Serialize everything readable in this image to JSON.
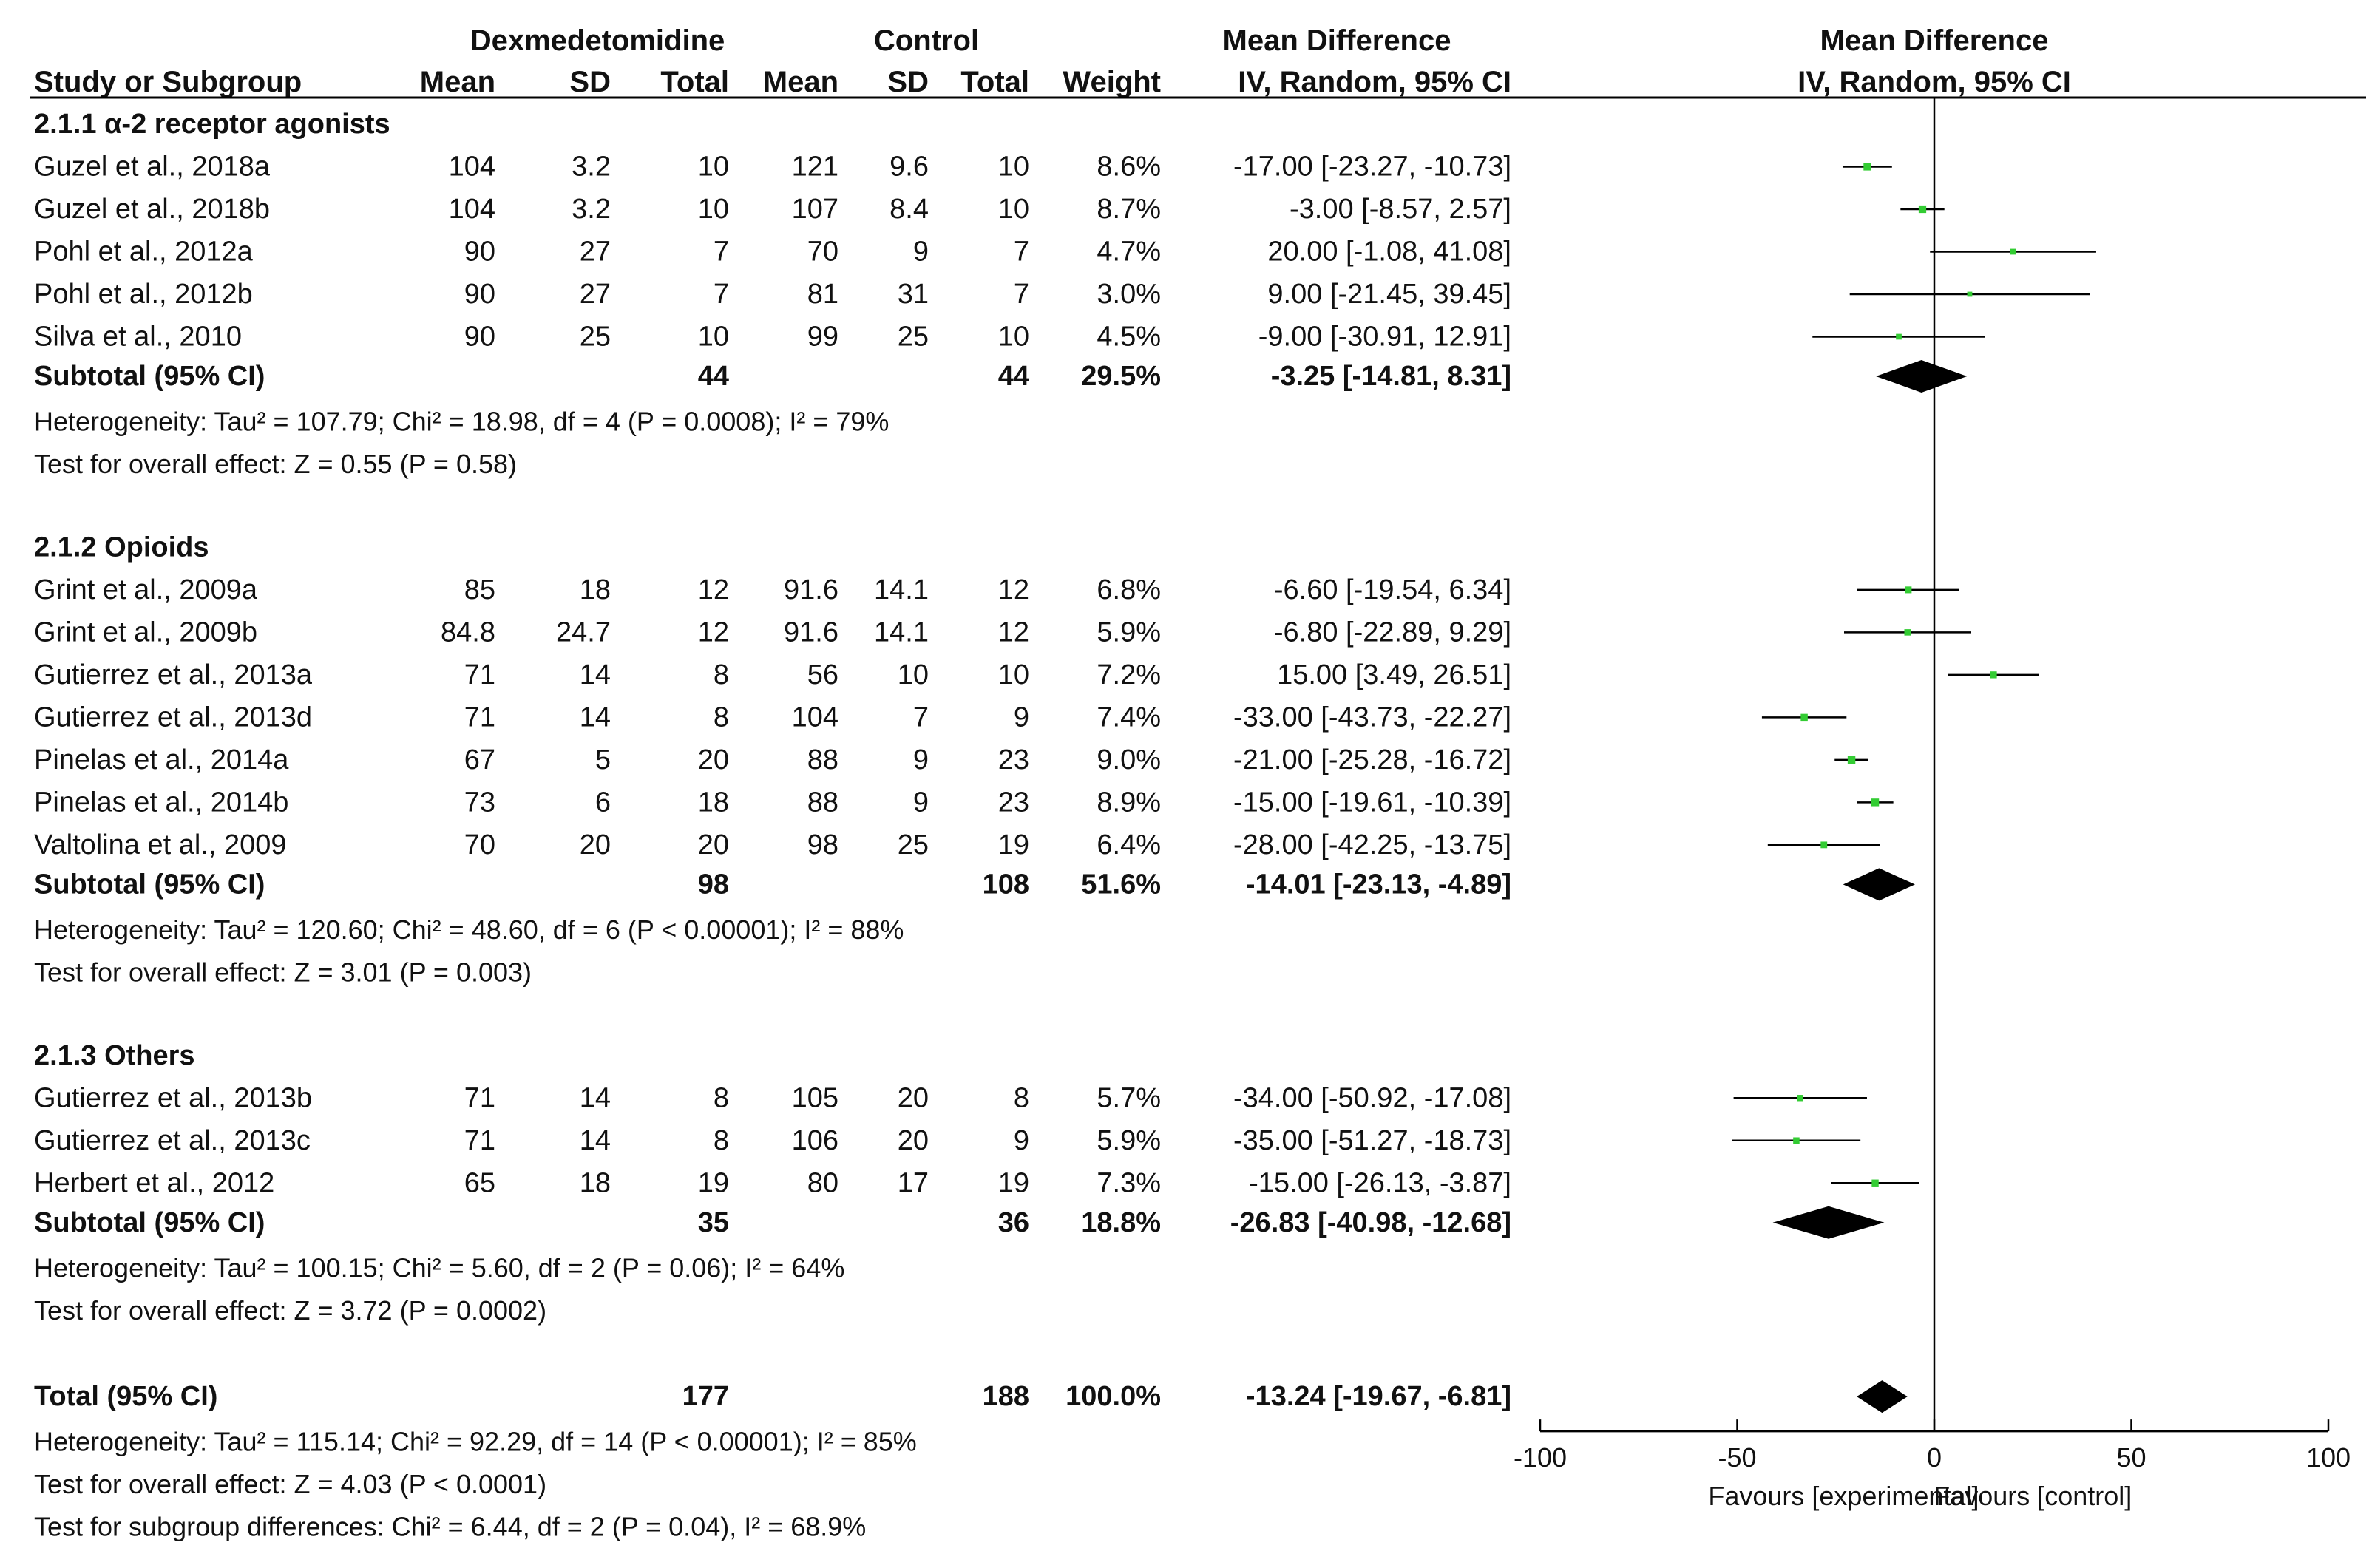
{
  "chart_data": {
    "type": "forest",
    "headers": {
      "study": "Study or Subgroup",
      "group1": "Dexmedetomidine",
      "group2": "Control",
      "mean": "Mean",
      "sd": "SD",
      "total": "Total",
      "weight": "Weight",
      "md": "Mean Difference",
      "method": "IV, Random, 95% CI",
      "plot_title": "Mean Difference",
      "plot_method": "IV, Random, 95% CI"
    },
    "subgroups": [
      {
        "title": "2.1.1 α-2 receptor agonists",
        "studies": [
          {
            "name": "Guzel et al., 2018a",
            "m1": "104",
            "sd1": "3.2",
            "n1": "10",
            "m2": "121",
            "sd2": "9.6",
            "n2": "10",
            "weight": "8.6%",
            "ci_text": "-17.00 [-23.27, -10.73]",
            "md": -17.0,
            "lo": -23.27,
            "hi": -10.73
          },
          {
            "name": "Guzel et al., 2018b",
            "m1": "104",
            "sd1": "3.2",
            "n1": "10",
            "m2": "107",
            "sd2": "8.4",
            "n2": "10",
            "weight": "8.7%",
            "ci_text": "-3.00 [-8.57, 2.57]",
            "md": -3.0,
            "lo": -8.57,
            "hi": 2.57
          },
          {
            "name": "Pohl et al., 2012a",
            "m1": "90",
            "sd1": "27",
            "n1": "7",
            "m2": "70",
            "sd2": "9",
            "n2": "7",
            "weight": "4.7%",
            "ci_text": "20.00 [-1.08, 41.08]",
            "md": 20.0,
            "lo": -1.08,
            "hi": 41.08
          },
          {
            "name": "Pohl et al., 2012b",
            "m1": "90",
            "sd1": "27",
            "n1": "7",
            "m2": "81",
            "sd2": "31",
            "n2": "7",
            "weight": "3.0%",
            "ci_text": "9.00 [-21.45, 39.45]",
            "md": 9.0,
            "lo": -21.45,
            "hi": 39.45
          },
          {
            "name": "Silva et al., 2010",
            "m1": "90",
            "sd1": "25",
            "n1": "10",
            "m2": "99",
            "sd2": "25",
            "n2": "10",
            "weight": "4.5%",
            "ci_text": "-9.00 [-30.91, 12.91]",
            "md": -9.0,
            "lo": -30.91,
            "hi": 12.91
          }
        ],
        "subtotal": {
          "label": "Subtotal (95% CI)",
          "n1": "44",
          "n2": "44",
          "weight": "29.5%",
          "ci_text": "-3.25 [-14.81, 8.31]",
          "md": -3.25,
          "lo": -14.81,
          "hi": 8.31
        },
        "heterogeneity": "Heterogeneity: Tau² = 107.79; Chi² = 18.98, df = 4 (P = 0.0008); I² = 79%",
        "overall": "Test for overall effect: Z = 0.55 (P = 0.58)"
      },
      {
        "title": "2.1.2 Opioids",
        "studies": [
          {
            "name": "Grint et al., 2009a",
            "m1": "85",
            "sd1": "18",
            "n1": "12",
            "m2": "91.6",
            "sd2": "14.1",
            "n2": "12",
            "weight": "6.8%",
            "ci_text": "-6.60 [-19.54, 6.34]",
            "md": -6.6,
            "lo": -19.54,
            "hi": 6.34
          },
          {
            "name": "Grint et al., 2009b",
            "m1": "84.8",
            "sd1": "24.7",
            "n1": "12",
            "m2": "91.6",
            "sd2": "14.1",
            "n2": "12",
            "weight": "5.9%",
            "ci_text": "-6.80 [-22.89, 9.29]",
            "md": -6.8,
            "lo": -22.89,
            "hi": 9.29
          },
          {
            "name": "Gutierrez et al., 2013a",
            "m1": "71",
            "sd1": "14",
            "n1": "8",
            "m2": "56",
            "sd2": "10",
            "n2": "10",
            "weight": "7.2%",
            "ci_text": "15.00 [3.49, 26.51]",
            "md": 15.0,
            "lo": 3.49,
            "hi": 26.51
          },
          {
            "name": "Gutierrez et al., 2013d",
            "m1": "71",
            "sd1": "14",
            "n1": "8",
            "m2": "104",
            "sd2": "7",
            "n2": "9",
            "weight": "7.4%",
            "ci_text": "-33.00 [-43.73, -22.27]",
            "md": -33.0,
            "lo": -43.73,
            "hi": -22.27
          },
          {
            "name": "Pinelas et al., 2014a",
            "m1": "67",
            "sd1": "5",
            "n1": "20",
            "m2": "88",
            "sd2": "9",
            "n2": "23",
            "weight": "9.0%",
            "ci_text": "-21.00 [-25.28, -16.72]",
            "md": -21.0,
            "lo": -25.28,
            "hi": -16.72
          },
          {
            "name": "Pinelas et al., 2014b",
            "m1": "73",
            "sd1": "6",
            "n1": "18",
            "m2": "88",
            "sd2": "9",
            "n2": "23",
            "weight": "8.9%",
            "ci_text": "-15.00 [-19.61, -10.39]",
            "md": -15.0,
            "lo": -19.61,
            "hi": -10.39
          },
          {
            "name": "Valtolina et al., 2009",
            "m1": "70",
            "sd1": "20",
            "n1": "20",
            "m2": "98",
            "sd2": "25",
            "n2": "19",
            "weight": "6.4%",
            "ci_text": "-28.00 [-42.25, -13.75]",
            "md": -28.0,
            "lo": -42.25,
            "hi": -13.75
          }
        ],
        "subtotal": {
          "label": "Subtotal (95% CI)",
          "n1": "98",
          "n2": "108",
          "weight": "51.6%",
          "ci_text": "-14.01 [-23.13, -4.89]",
          "md": -14.01,
          "lo": -23.13,
          "hi": -4.89
        },
        "heterogeneity": "Heterogeneity: Tau² = 120.60; Chi² = 48.60, df = 6 (P < 0.00001); I² = 88%",
        "overall": "Test for overall effect: Z = 3.01 (P = 0.003)"
      },
      {
        "title": "2.1.3 Others",
        "studies": [
          {
            "name": "Gutierrez et al., 2013b",
            "m1": "71",
            "sd1": "14",
            "n1": "8",
            "m2": "105",
            "sd2": "20",
            "n2": "8",
            "weight": "5.7%",
            "ci_text": "-34.00 [-50.92, -17.08]",
            "md": -34.0,
            "lo": -50.92,
            "hi": -17.08
          },
          {
            "name": "Gutierrez et al., 2013c",
            "m1": "71",
            "sd1": "14",
            "n1": "8",
            "m2": "106",
            "sd2": "20",
            "n2": "9",
            "weight": "5.9%",
            "ci_text": "-35.00 [-51.27, -18.73]",
            "md": -35.0,
            "lo": -51.27,
            "hi": -18.73
          },
          {
            "name": "Herbert et al., 2012",
            "m1": "65",
            "sd1": "18",
            "n1": "19",
            "m2": "80",
            "sd2": "17",
            "n2": "19",
            "weight": "7.3%",
            "ci_text": "-15.00 [-26.13, -3.87]",
            "md": -15.0,
            "lo": -26.13,
            "hi": -3.87
          }
        ],
        "subtotal": {
          "label": "Subtotal (95% CI)",
          "n1": "35",
          "n2": "36",
          "weight": "18.8%",
          "ci_text": "-26.83 [-40.98, -12.68]",
          "md": -26.83,
          "lo": -40.98,
          "hi": -12.68
        },
        "heterogeneity": "Heterogeneity: Tau² = 100.15; Chi² = 5.60, df = 2 (P = 0.06); I² = 64%",
        "overall": "Test for overall effect: Z = 3.72 (P = 0.0002)"
      }
    ],
    "total": {
      "label": "Total (95% CI)",
      "n1": "177",
      "n2": "188",
      "weight": "100.0%",
      "ci_text": "-13.24 [-19.67, -6.81]",
      "md": -13.24,
      "lo": -19.67,
      "hi": -6.81
    },
    "total_heterogeneity": "Heterogeneity: Tau² = 115.14; Chi² = 92.29, df = 14 (P < 0.00001); I² = 85%",
    "total_overall": "Test for overall effect: Z = 4.03 (P < 0.0001)",
    "subgroup_diff": "Test for subgroup differences: Chi² = 6.44, df = 2 (P = 0.04), I² = 68.9%",
    "axis": {
      "min": -100,
      "max": 100,
      "ticks": [
        -100,
        -50,
        0,
        50,
        100
      ]
    },
    "favours_left": "Favours [experimental]",
    "favours_right": "Favours [control]",
    "point_color": "#33cc33",
    "diamond_color": "#000000"
  }
}
